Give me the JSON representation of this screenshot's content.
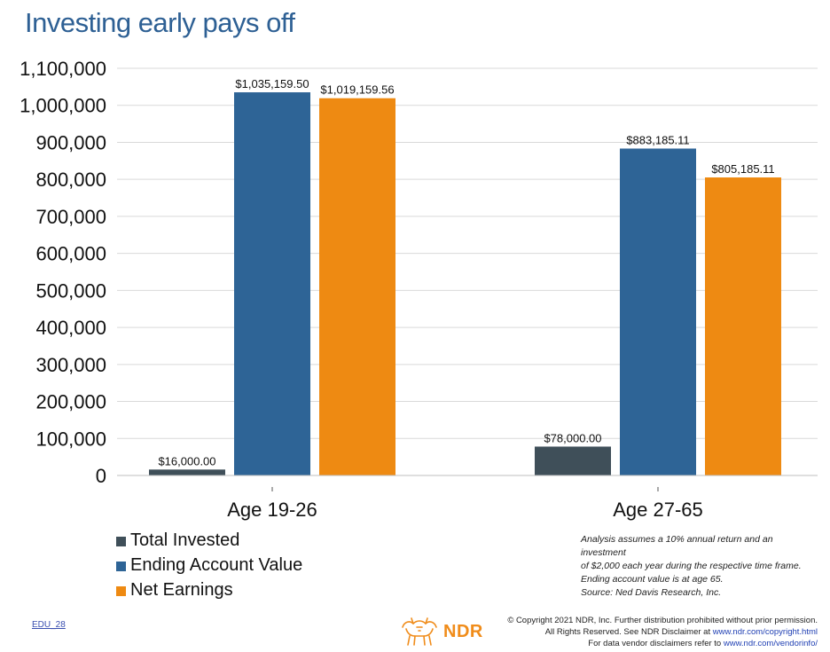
{
  "title": "Investing early pays off",
  "chart_data": {
    "type": "bar",
    "categories": [
      "Age 19-26",
      "Age 27-65"
    ],
    "series": [
      {
        "name": "Total Invested",
        "color": "#3f4f59",
        "values": [
          16000.0,
          78000.0
        ],
        "labels": [
          "$16,000.00",
          "$78,000.00"
        ]
      },
      {
        "name": "Ending Account Value",
        "color": "#2e6496",
        "values": [
          1035159.5,
          883185.11
        ],
        "labels": [
          "$1,035,159.50",
          "$883,185.11"
        ]
      },
      {
        "name": "Net Earnings",
        "color": "#ee8a12",
        "values": [
          1019159.56,
          805185.11
        ],
        "labels": [
          "$1,019,159.56",
          "$805,185.11"
        ]
      }
    ],
    "ylim": [
      0,
      1100000
    ],
    "yticks": [
      0,
      100000,
      200000,
      300000,
      400000,
      500000,
      600000,
      700000,
      800000,
      900000,
      1000000,
      1100000
    ],
    "ytick_labels": [
      "0",
      "100,000",
      "200,000",
      "300,000",
      "400,000",
      "500,000",
      "600,000",
      "700,000",
      "800,000",
      "900,000",
      "1,000,000",
      "1,100,000"
    ],
    "grid": true,
    "legend_position": "bottom-left"
  },
  "note": {
    "lines": [
      "Analysis assumes a 10% annual return and an investment",
      "of $2,000 each year during the respective time frame.",
      "Ending account value is at age 65.",
      "Source: Ned Davis Research, Inc."
    ]
  },
  "footer": {
    "edu_code": "EDU_28",
    "logo_text": "NDR",
    "copyright_line1": "© Copyright 2021 NDR, Inc. Further distribution prohibited without prior permission.",
    "copyright_line2": "All Rights Reserved. See NDR Disclaimer at ",
    "copyright_link1": "www.ndr.com/copyright.html",
    "copyright_line3": "For data vendor disclaimers refer to ",
    "copyright_link2": "www.ndr.com/vendorinfo/"
  },
  "icons": {
    "logo": "bull-bear-icon"
  }
}
